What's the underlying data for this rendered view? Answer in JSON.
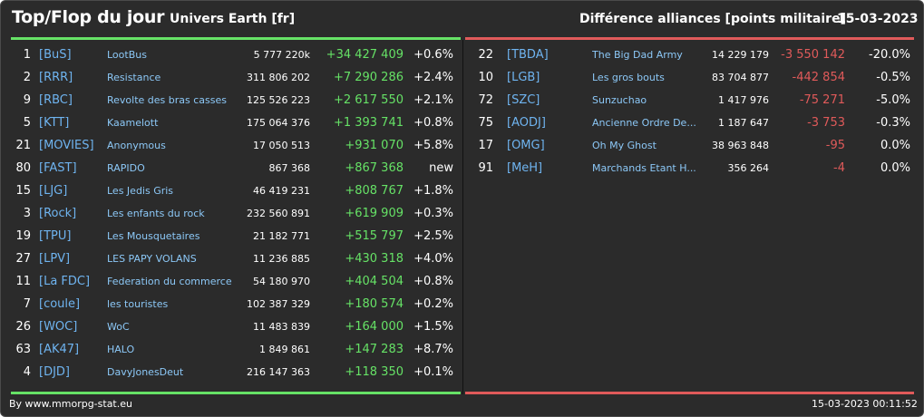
{
  "header": {
    "title": "Top/Flop du jour",
    "universe": "Univers Earth [fr]",
    "subtitle": "Différence alliances [points militaire]",
    "date": "15-03-2023"
  },
  "colors": {
    "up": "#66e266",
    "down": "#e05a5a",
    "tag": "#6fb4f0",
    "name": "#8cc8f7",
    "background": "#2b2b2b"
  },
  "top": [
    {
      "rank": "1",
      "tag": "[BuS]",
      "name": "LootBus",
      "points": "5 777 220k",
      "diff": "+34 427 409",
      "pct": "+0.6%"
    },
    {
      "rank": "2",
      "tag": "[RRR]",
      "name": "Resistance",
      "points": "311 806 202",
      "diff": "+7 290 286",
      "pct": "+2.4%"
    },
    {
      "rank": "9",
      "tag": "[RBC]",
      "name": "Revolte des bras casses",
      "points": "125 526 223",
      "diff": "+2 617 550",
      "pct": "+2.1%"
    },
    {
      "rank": "5",
      "tag": "[KTT]",
      "name": "Kaamelott",
      "points": "175 064 376",
      "diff": "+1 393 741",
      "pct": "+0.8%"
    },
    {
      "rank": "21",
      "tag": "[MOVIES]",
      "name": "Anonymous",
      "points": "17 050 513",
      "diff": "+931 070",
      "pct": "+5.8%"
    },
    {
      "rank": "80",
      "tag": "[FAST]",
      "name": "RAPIDO",
      "points": "867 368",
      "diff": "+867 368",
      "pct": "new"
    },
    {
      "rank": "15",
      "tag": "[LJG]",
      "name": "Les Jedis Gris",
      "points": "46 419 231",
      "diff": "+808 767",
      "pct": "+1.8%"
    },
    {
      "rank": "3",
      "tag": "[Rock]",
      "name": "Les enfants du rock",
      "points": "232 560 891",
      "diff": "+619 909",
      "pct": "+0.3%"
    },
    {
      "rank": "19",
      "tag": "[TPU]",
      "name": "Les Mousquetaires",
      "points": "21 182 771",
      "diff": "+515 797",
      "pct": "+2.5%"
    },
    {
      "rank": "27",
      "tag": "[LPV]",
      "name": "LES PAPY VOLANS",
      "points": "11 236 885",
      "diff": "+430 318",
      "pct": "+4.0%"
    },
    {
      "rank": "11",
      "tag": "[La FDC]",
      "name": "Federation du commerce",
      "points": "54 180 970",
      "diff": "+404 504",
      "pct": "+0.8%"
    },
    {
      "rank": "7",
      "tag": "[coule]",
      "name": "les touristes",
      "points": "102 387 329",
      "diff": "+180 574",
      "pct": "+0.2%"
    },
    {
      "rank": "26",
      "tag": "[WOC]",
      "name": "WoC",
      "points": "11 483 839",
      "diff": "+164 000",
      "pct": "+1.5%"
    },
    {
      "rank": "63",
      "tag": "[AK47]",
      "name": "HALO",
      "points": "1 849 861",
      "diff": "+147 283",
      "pct": "+8.7%"
    },
    {
      "rank": "4",
      "tag": "[DJD]",
      "name": "DavyJonesDeut",
      "points": "216 147 363",
      "diff": "+118 350",
      "pct": "+0.1%"
    }
  ],
  "flop": [
    {
      "rank": "22",
      "tag": "[TBDA]",
      "name": "The Big Dad Army",
      "points": "14 229 179",
      "diff": "-3 550 142",
      "pct": "-20.0%"
    },
    {
      "rank": "10",
      "tag": "[LGB]",
      "name": "Les gros bouts",
      "points": "83 704 877",
      "diff": "-442 854",
      "pct": "-0.5%"
    },
    {
      "rank": "72",
      "tag": "[SZC]",
      "name": "Sunzuchao",
      "points": "1 417 976",
      "diff": "-75 271",
      "pct": "-5.0%"
    },
    {
      "rank": "75",
      "tag": "[AODJ]",
      "name": "Ancienne Ordre De...",
      "points": "1 187 647",
      "diff": "-3 753",
      "pct": "-0.3%"
    },
    {
      "rank": "17",
      "tag": "[OMG]",
      "name": "Oh My Ghost",
      "points": "38 963 848",
      "diff": "-95",
      "pct": "0.0%"
    },
    {
      "rank": "91",
      "tag": "[MeH]",
      "name": "Marchands Etant H...",
      "points": "356 264",
      "diff": "-4",
      "pct": "0.0%"
    }
  ],
  "footer": {
    "source": "By www.mmorpg-stat.eu",
    "timestamp": "15-03-2023 00:11:52"
  }
}
